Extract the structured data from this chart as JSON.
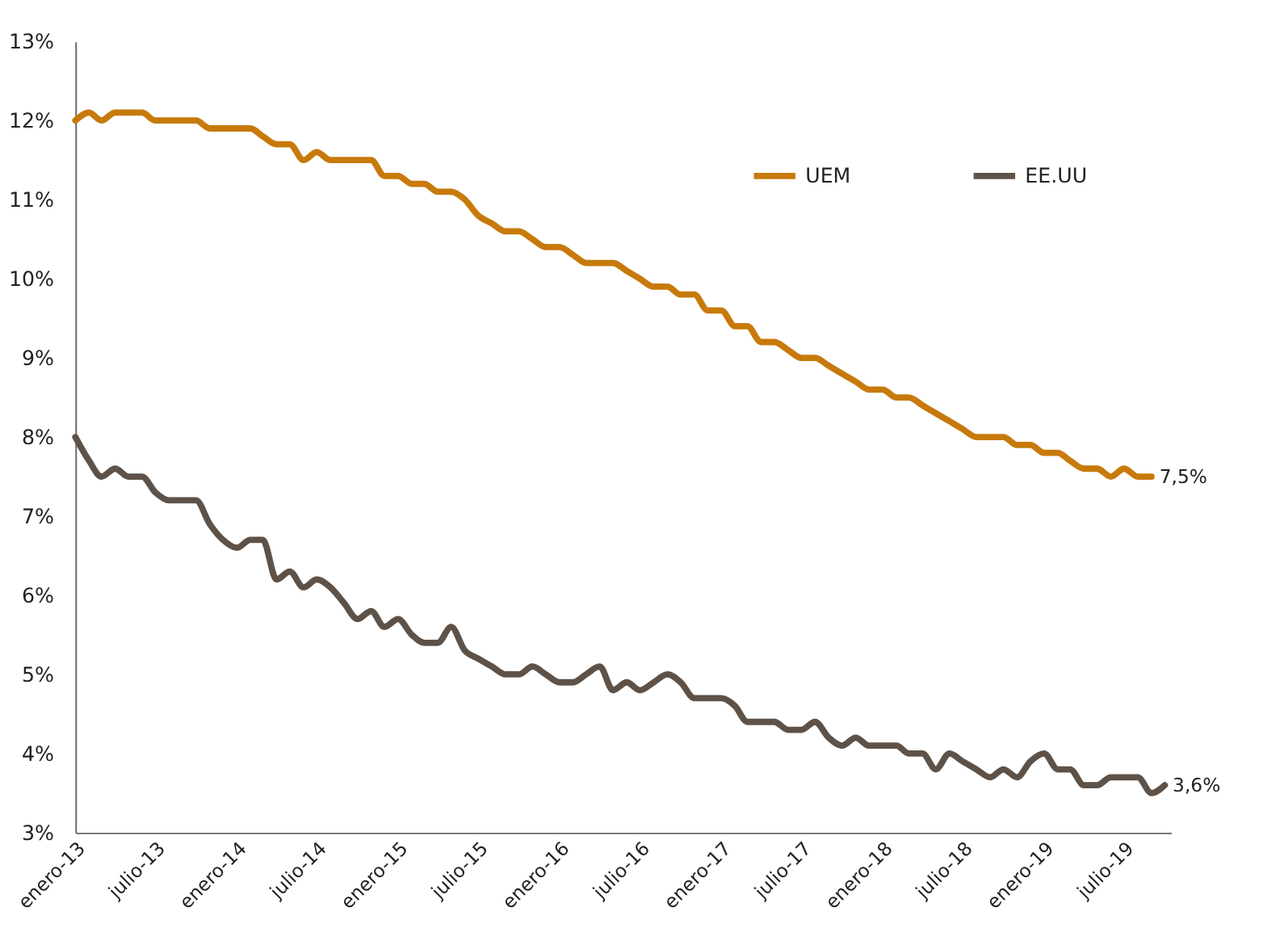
{
  "chart_data": {
    "type": "line",
    "x": [
      "2013-01",
      "2013-02",
      "2013-03",
      "2013-04",
      "2013-05",
      "2013-06",
      "2013-07",
      "2013-08",
      "2013-09",
      "2013-10",
      "2013-11",
      "2013-12",
      "2014-01",
      "2014-02",
      "2014-03",
      "2014-04",
      "2014-05",
      "2014-06",
      "2014-07",
      "2014-08",
      "2014-09",
      "2014-10",
      "2014-11",
      "2014-12",
      "2015-01",
      "2015-02",
      "2015-03",
      "2015-04",
      "2015-05",
      "2015-06",
      "2015-07",
      "2015-08",
      "2015-09",
      "2015-10",
      "2015-11",
      "2015-12",
      "2016-01",
      "2016-02",
      "2016-03",
      "2016-04",
      "2016-05",
      "2016-06",
      "2016-07",
      "2016-08",
      "2016-09",
      "2016-10",
      "2016-11",
      "2016-12",
      "2017-01",
      "2017-02",
      "2017-03",
      "2017-04",
      "2017-05",
      "2017-06",
      "2017-07",
      "2017-08",
      "2017-09",
      "2017-10",
      "2017-11",
      "2017-12",
      "2018-01",
      "2018-02",
      "2018-03",
      "2018-04",
      "2018-05",
      "2018-06",
      "2018-07",
      "2018-08",
      "2018-09",
      "2018-10",
      "2018-11",
      "2018-12",
      "2019-01",
      "2019-02",
      "2019-03",
      "2019-04",
      "2019-05",
      "2019-06",
      "2019-07",
      "2019-08",
      "2019-09",
      "2019-10"
    ],
    "series": [
      {
        "name": "UEM",
        "color": "#c77a0b",
        "values": [
          12.0,
          12.1,
          12.0,
          12.1,
          12.1,
          12.1,
          12.0,
          12.0,
          12.0,
          12.0,
          11.9,
          11.9,
          11.9,
          11.9,
          11.8,
          11.7,
          11.7,
          11.5,
          11.6,
          11.5,
          11.5,
          11.5,
          11.5,
          11.3,
          11.3,
          11.2,
          11.2,
          11.1,
          11.1,
          11.0,
          10.8,
          10.7,
          10.6,
          10.6,
          10.5,
          10.4,
          10.4,
          10.3,
          10.2,
          10.2,
          10.2,
          10.1,
          10.0,
          9.9,
          9.9,
          9.8,
          9.8,
          9.6,
          9.6,
          9.4,
          9.4,
          9.2,
          9.2,
          9.1,
          9.0,
          9.0,
          8.9,
          8.8,
          8.7,
          8.6,
          8.6,
          8.5,
          8.5,
          8.4,
          8.3,
          8.2,
          8.1,
          8.0,
          8.0,
          8.0,
          7.9,
          7.9,
          7.8,
          7.8,
          7.7,
          7.6,
          7.6,
          7.5,
          7.6,
          7.5,
          7.5,
          null
        ]
      },
      {
        "name": "EE.UU",
        "color": "#5e5248",
        "values": [
          8.0,
          7.7,
          7.5,
          7.6,
          7.5,
          7.5,
          7.3,
          7.2,
          7.2,
          7.2,
          6.9,
          6.7,
          6.6,
          6.7,
          6.7,
          6.2,
          6.3,
          6.1,
          6.2,
          6.1,
          5.9,
          5.7,
          5.8,
          5.6,
          5.7,
          5.5,
          5.4,
          5.4,
          5.6,
          5.3,
          5.2,
          5.1,
          5.0,
          5.0,
          5.1,
          5.0,
          4.9,
          4.9,
          5.0,
          5.1,
          4.8,
          4.9,
          4.8,
          4.9,
          5.0,
          4.9,
          4.7,
          4.7,
          4.7,
          4.6,
          4.4,
          4.4,
          4.4,
          4.3,
          4.3,
          4.4,
          4.2,
          4.1,
          4.2,
          4.1,
          4.1,
          4.1,
          4.0,
          4.0,
          3.8,
          4.0,
          3.9,
          3.8,
          3.7,
          3.8,
          3.7,
          3.9,
          4.0,
          3.8,
          3.8,
          3.6,
          3.6,
          3.7,
          3.7,
          3.7,
          3.5,
          3.6
        ]
      }
    ],
    "xlim": [
      "2013-01",
      "2019-10-15"
    ],
    "xticks": [
      {
        "value": "2013-01",
        "label": "enero-13"
      },
      {
        "value": "2013-07",
        "label": "julio-13"
      },
      {
        "value": "2014-01",
        "label": "enero-14"
      },
      {
        "value": "2014-07",
        "label": "julio-14"
      },
      {
        "value": "2015-01",
        "label": "enero-15"
      },
      {
        "value": "2015-07",
        "label": "julio-15"
      },
      {
        "value": "2016-01",
        "label": "enero-16"
      },
      {
        "value": "2016-07",
        "label": "julio-16"
      },
      {
        "value": "2017-01",
        "label": "enero-17"
      },
      {
        "value": "2017-07",
        "label": "julio-17"
      },
      {
        "value": "2018-01",
        "label": "enero-18"
      },
      {
        "value": "2018-07",
        "label": "julio-18"
      },
      {
        "value": "2019-01",
        "label": "enero-19"
      },
      {
        "value": "2019-07",
        "label": "julio-19"
      }
    ],
    "ylim": [
      3,
      13
    ],
    "yticks": [
      {
        "value": 3,
        "label": "3%"
      },
      {
        "value": 4,
        "label": "4%"
      },
      {
        "value": 5,
        "label": "5%"
      },
      {
        "value": 6,
        "label": "6%"
      },
      {
        "value": 7,
        "label": "7%"
      },
      {
        "value": 8,
        "label": "8%"
      },
      {
        "value": 9,
        "label": "9%"
      },
      {
        "value": 10,
        "label": "10%"
      },
      {
        "value": 11,
        "label": "11%"
      },
      {
        "value": 12,
        "label": "12%"
      },
      {
        "value": 13,
        "label": "13%"
      }
    ],
    "annotations": [
      {
        "text": "7,5%",
        "x": "2019-09",
        "y": 7.5
      },
      {
        "text": "3,6%",
        "x": "2019-10",
        "y": 3.6
      }
    ],
    "grid": false,
    "legend": "top right",
    "marker": "none",
    "line_style": "solid"
  }
}
